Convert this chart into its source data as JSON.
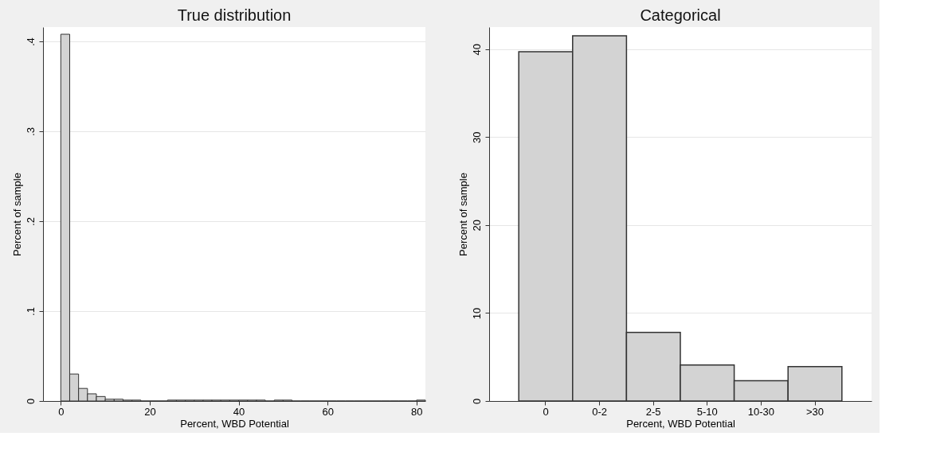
{
  "chart_data": [
    {
      "type": "histogram",
      "title": "True distribution",
      "xlabel": "Percent, WBD Potential",
      "ylabel": "Percent of sample",
      "color": "#d3d3d3",
      "bins": [
        0,
        2,
        4,
        6,
        8,
        10,
        12,
        14,
        16,
        18,
        20,
        22,
        24,
        26,
        28,
        30,
        32,
        34,
        36,
        38,
        40,
        42,
        44,
        46,
        48,
        50,
        52,
        54,
        56,
        58,
        60,
        62,
        64,
        66,
        68,
        70,
        72,
        74,
        76,
        78,
        80,
        82
      ],
      "values": [
        0.408,
        0.03,
        0.014,
        0.008,
        0.005,
        0.002,
        0.002,
        0.001,
        0.001,
        0,
        0,
        0,
        0.001,
        0.001,
        0.001,
        0.001,
        0.001,
        0.001,
        0.001,
        0.001,
        0.001,
        0.001,
        0.001,
        0,
        0.001,
        0.001,
        0,
        0,
        0,
        0,
        0,
        0,
        0,
        0,
        0,
        0,
        0,
        0,
        0,
        0,
        0.001
      ],
      "xlim": [
        -4,
        82
      ],
      "xticks": [
        0,
        20,
        40,
        60,
        80
      ],
      "ylim": [
        0,
        0.416
      ],
      "yticks": [
        0,
        {
          "value": 0.1,
          "label": ".1"
        },
        {
          "value": 0.2,
          "label": ".2"
        },
        {
          "value": 0.3,
          "label": ".3"
        },
        {
          "value": 0.4,
          "label": ".4"
        }
      ],
      "grid": "y"
    },
    {
      "type": "bar",
      "title": "Categorical",
      "xlabel": "Percent, WBD Potential",
      "ylabel": "Percent of sample",
      "color": "#d3d3d3",
      "categories": [
        "0",
        "0-2",
        "2-5",
        "5-10",
        "10-30",
        ">30"
      ],
      "values": [
        39.7,
        41.5,
        7.8,
        4.1,
        2.3,
        3.9
      ],
      "ylim": [
        0,
        42.5
      ],
      "yticks": [
        0,
        10,
        20,
        30,
        40
      ],
      "grid": "y"
    }
  ]
}
